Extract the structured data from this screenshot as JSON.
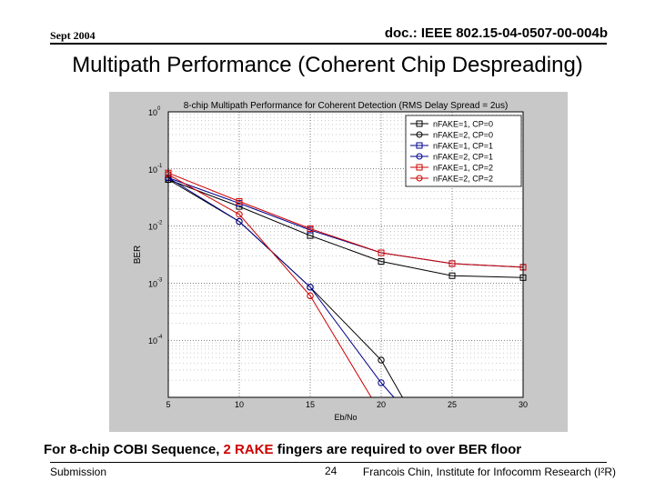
{
  "header": {
    "date": "Sept 2004",
    "doc_id": "doc.: IEEE 802.15-04-0507-00-004b"
  },
  "slide_title": "Multipath Performance (Coherent Chip Despreading)",
  "caption": {
    "before": "For 8-chip COBI Sequence, ",
    "highlight": "2 RAKE",
    "after": " fingers are required to over BER floor"
  },
  "footer": {
    "left": "Submission",
    "page": "24",
    "right": "Francois Chin, Institute for Infocomm Research (I²R)"
  },
  "colors": {
    "panel_bg": "#c8c8c8",
    "plot_bg": "#ffffff",
    "black_series": "#000000",
    "blue_series": "#00008b",
    "red_series": "#cc0000",
    "highlight_text": "#cc0000"
  },
  "chart_data": {
    "type": "line",
    "title": "8-chip Multipath Performance for Coherent Detection (RMS Delay Spread = 2us)",
    "xlabel": "Eb/No",
    "ylabel": "BER",
    "xlim": [
      5,
      30
    ],
    "ylim": [
      1e-05,
      1
    ],
    "yscale": "log",
    "xticks": [
      5,
      10,
      15,
      20,
      25,
      30
    ],
    "yticks": [
      {
        "value": 1,
        "base": "10",
        "exp": "0"
      },
      {
        "value": 0.1,
        "base": "10",
        "exp": "-1"
      },
      {
        "value": 0.01,
        "base": "10",
        "exp": "-2"
      },
      {
        "value": 0.001,
        "base": "10",
        "exp": "-3"
      },
      {
        "value": 0.0001,
        "base": "10",
        "exp": "-4"
      }
    ],
    "grid": true,
    "legend_position": "top-right",
    "series": [
      {
        "name": "nFAKE=1, CP=0",
        "color": "#000000",
        "marker": "square",
        "x": [
          5,
          10,
          15,
          20,
          25,
          30
        ],
        "y": [
          0.065,
          0.022,
          0.0068,
          0.0024,
          0.00135,
          0.00125
        ]
      },
      {
        "name": "nFAKE=2, CP=0",
        "color": "#000000",
        "marker": "circle",
        "x": [
          5,
          10,
          15,
          20,
          21.5
        ],
        "y": [
          0.065,
          0.012,
          0.00085,
          4.5e-05,
          1e-05
        ]
      },
      {
        "name": "nFAKE=1, CP=1",
        "color": "#00008b",
        "marker": "square",
        "x": [
          5,
          10,
          15,
          20,
          25,
          30
        ],
        "y": [
          0.07,
          0.025,
          0.0085,
          0.0034,
          0.0022,
          0.0019
        ]
      },
      {
        "name": "nFAKE=2, CP=1",
        "color": "#00008b",
        "marker": "circle",
        "x": [
          5,
          10,
          15,
          20,
          20.9
        ],
        "y": [
          0.07,
          0.012,
          0.00085,
          1.8e-05,
          1e-05
        ]
      },
      {
        "name": "nFAKE=1, CP=2",
        "color": "#cc0000",
        "marker": "square",
        "x": [
          5,
          10,
          15,
          20,
          25,
          30
        ],
        "y": [
          0.085,
          0.027,
          0.009,
          0.0034,
          0.0022,
          0.0019
        ]
      },
      {
        "name": "nFAKE=2, CP=2",
        "color": "#cc0000",
        "marker": "circle",
        "x": [
          5,
          10,
          15,
          19.3
        ],
        "y": [
          0.08,
          0.016,
          0.0006,
          1e-05
        ]
      }
    ]
  }
}
